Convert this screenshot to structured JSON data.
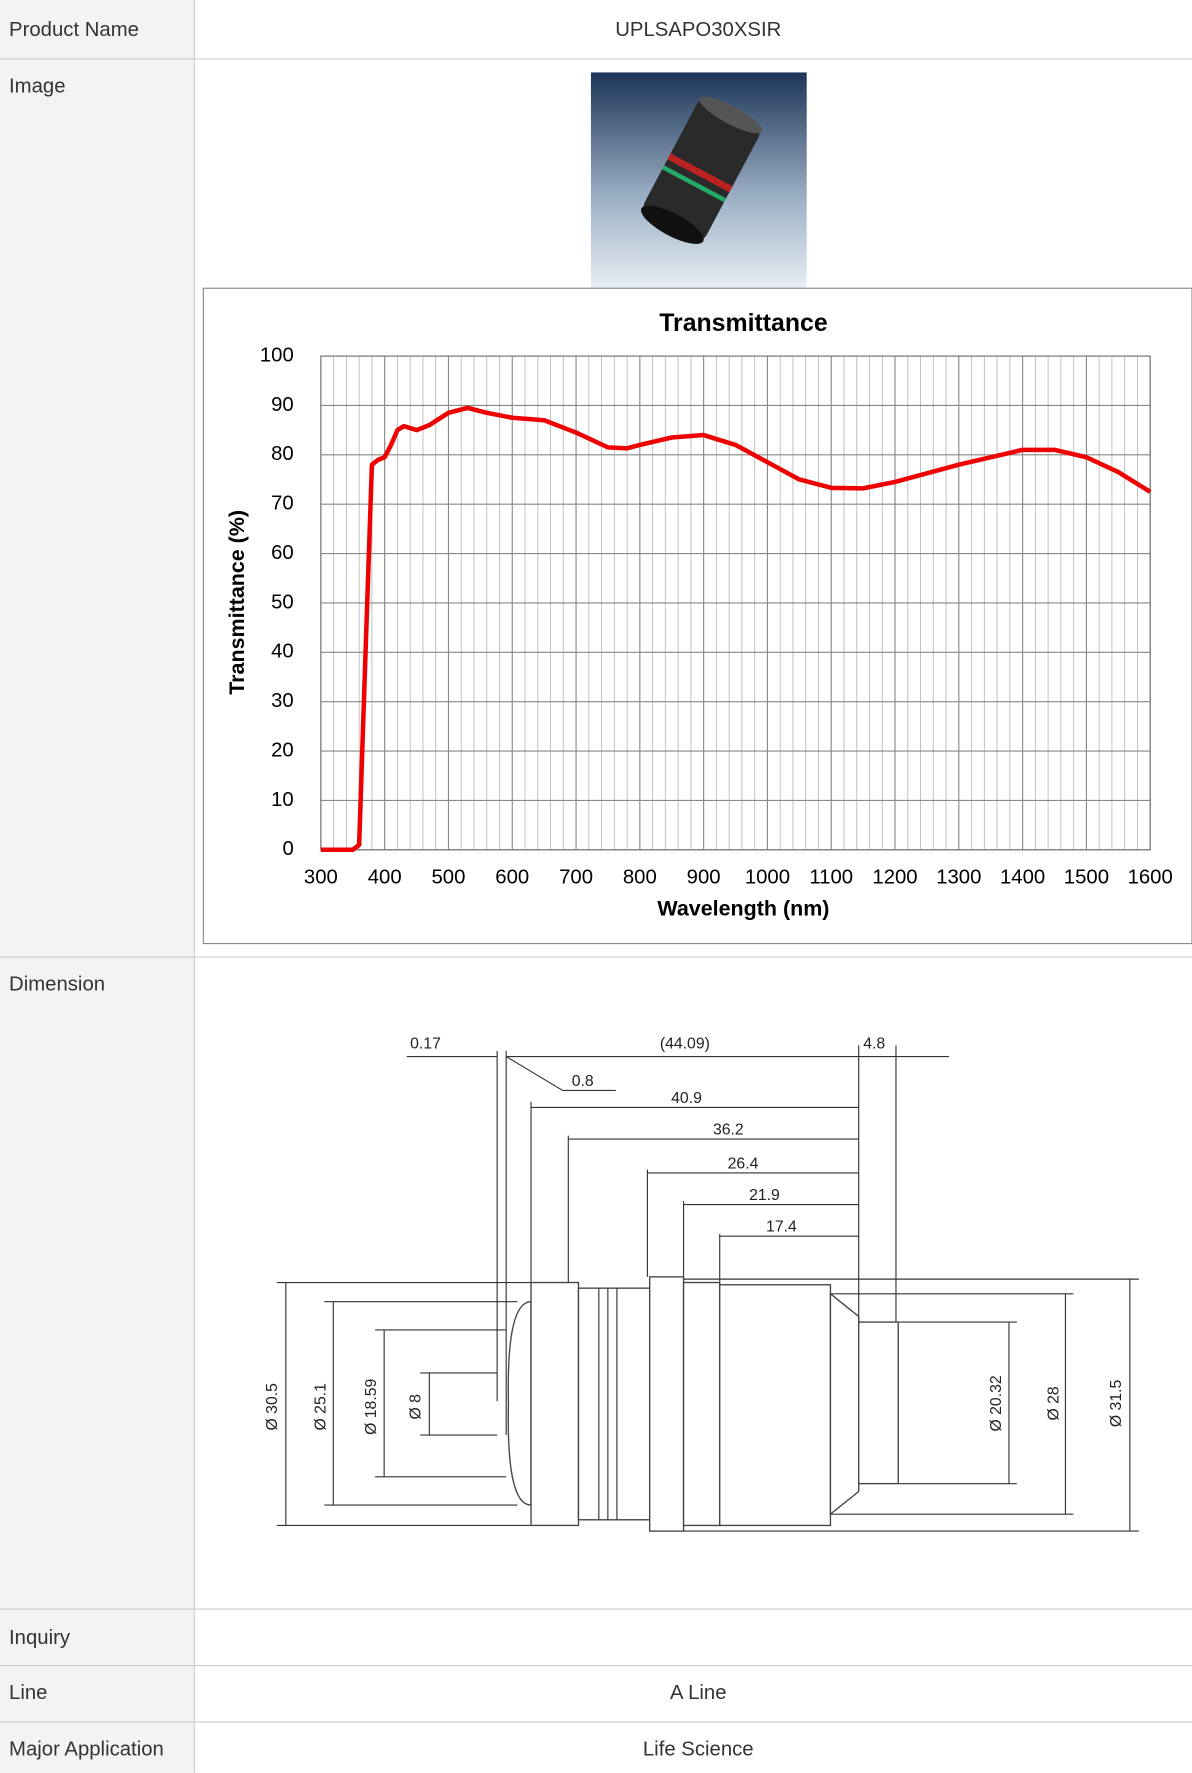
{
  "table": {
    "rows": [
      [
        "Product Name",
        "UPLSAPO30XSIR"
      ],
      [
        "Image"
      ],
      [
        "Dimension"
      ],
      [
        "Inquiry"
      ],
      [
        "Line",
        "A Line"
      ],
      [
        "Major Application",
        "Life Science"
      ]
    ]
  },
  "chart_data": {
    "type": "line",
    "title": "Transmittance",
    "x_label": "Wavelength (nm)",
    "y_label": "Transmittance (%)",
    "x": [
      300,
      350,
      360,
      370,
      380,
      390,
      400,
      410,
      420,
      430,
      450,
      470,
      500,
      530,
      560,
      600,
      650,
      700,
      750,
      780,
      800,
      850,
      900,
      950,
      1000,
      1050,
      1100,
      1150,
      1200,
      1300,
      1400,
      1450,
      1500,
      1550,
      1600
    ],
    "values": [
      0,
      0,
      1,
      40,
      78,
      79,
      79.5,
      82,
      85,
      85.8,
      85,
      86,
      88.5,
      89.5,
      88.5,
      87.5,
      87,
      84.5,
      81.5,
      81.3,
      82,
      83.5,
      84,
      82,
      78.5,
      75,
      73.3,
      73.2,
      74.5,
      78,
      81,
      81,
      79.5,
      76.5,
      72.5
    ],
    "color": "#ee0000",
    "xlim": [
      300,
      1600
    ],
    "ylim": [
      0,
      100
    ],
    "xticks": [
      300,
      400,
      500,
      600,
      700,
      800,
      900,
      1000,
      1100,
      1200,
      1300,
      1400,
      1500,
      1600
    ],
    "yticks": [
      0,
      10,
      20,
      30,
      40,
      50,
      60,
      70,
      80,
      90,
      100
    ],
    "grid": true
  },
  "dimension": {
    "labels": [
      "0.17",
      "(44.09)",
      "4.8",
      "0.8",
      "40.9",
      "36.2",
      "26.4",
      "21.9",
      "17.4",
      "Ø 30.5",
      "Ø 25.1",
      "Ø 18.59",
      "Ø 8",
      "Ø 20.32",
      "Ø 28",
      "Ø 31.5"
    ]
  }
}
